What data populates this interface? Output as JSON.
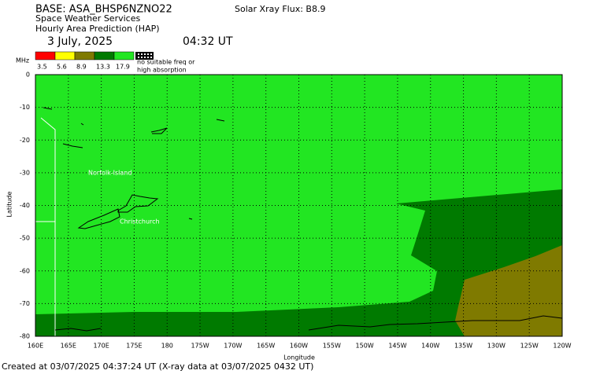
{
  "header": {
    "base": "BASE: ASA_BHSP6NZNO22",
    "service": "Space Weather Services",
    "product": "Hourly Area Prediction (HAP)",
    "xray": "Solar Xray Flux: B8.9",
    "date": "3 July, 2025",
    "time": "04:32 UT"
  },
  "legend": {
    "unit": "MHz",
    "items": [
      {
        "label": "3.5",
        "color": "#ff0000"
      },
      {
        "label": "5.6",
        "color": "#ffff00"
      },
      {
        "label": "8.9",
        "color": "#7f7a00"
      },
      {
        "label": "13.3",
        "color": "#007a00"
      },
      {
        "label": "17.9",
        "color": "#22e622"
      }
    ],
    "no_freq_lines": [
      "no suitable freq or",
      "high absorption"
    ]
  },
  "map": {
    "xlim": [
      160,
      240
    ],
    "ylim": [
      -80,
      0
    ],
    "xticks": [
      {
        "value": 160,
        "label": "160E"
      },
      {
        "value": 165,
        "label": "165E"
      },
      {
        "value": 170,
        "label": "170E"
      },
      {
        "value": 175,
        "label": "175E"
      },
      180,
      {
        "value": 185,
        "label": "175W"
      },
      {
        "value": 190,
        "label": "170W"
      },
      {
        "value": 195,
        "label": "165W"
      },
      {
        "value": 200,
        "label": "160W"
      },
      {
        "value": 205,
        "label": "155W"
      },
      {
        "value": 210,
        "label": "150W"
      },
      {
        "value": 215,
        "label": "145W"
      },
      {
        "value": 220,
        "label": "140W"
      },
      {
        "value": 225,
        "label": "135W"
      },
      {
        "value": 230,
        "label": "130W"
      },
      {
        "value": 235,
        "label": "125W"
      },
      {
        "value": 240,
        "label": "120W"
      }
    ],
    "yticks": [
      0,
      -10,
      -20,
      -30,
      -40,
      -50,
      -60,
      -70,
      -80
    ],
    "x_label": "Longitude",
    "y_label": "Latitude",
    "grid": true,
    "places": [
      {
        "name": "Norfolk-Island"
      },
      {
        "name": "Christchurch"
      }
    ]
  },
  "footer": "Created at 03/07/2025 04:37:24 UT (X-ray data at 03/07/2025 0432 UT)"
}
